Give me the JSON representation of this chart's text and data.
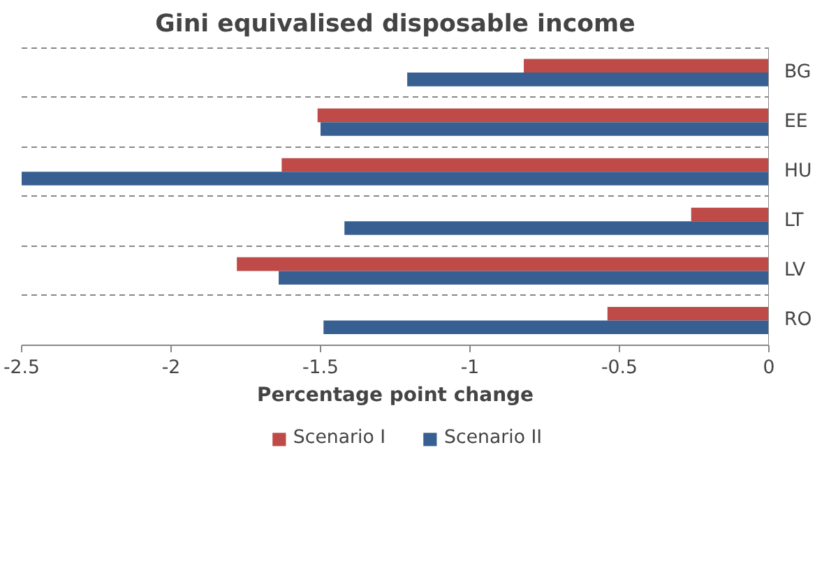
{
  "chart_data": {
    "type": "bar",
    "orientation": "horizontal",
    "title": "Gini equivalised disposable income",
    "xlabel": "Percentage point change",
    "categories": [
      "BG",
      "EE",
      "HU",
      "LT",
      "LV",
      "RO"
    ],
    "series": [
      {
        "name": "Scenario I",
        "color": "#be4b48",
        "values": [
          -0.82,
          -1.51,
          -1.63,
          -0.26,
          -1.78,
          -0.54
        ]
      },
      {
        "name": "Scenario II",
        "color": "#375f92",
        "values": [
          -1.21,
          -1.5,
          -2.5,
          -1.42,
          -1.64,
          -1.49
        ]
      }
    ],
    "xlim": [
      -2.5,
      0
    ],
    "xticks": [
      -2.5,
      -2,
      -1.5,
      -1,
      -0.5,
      0
    ],
    "grid": "y",
    "legend": "bottom"
  }
}
